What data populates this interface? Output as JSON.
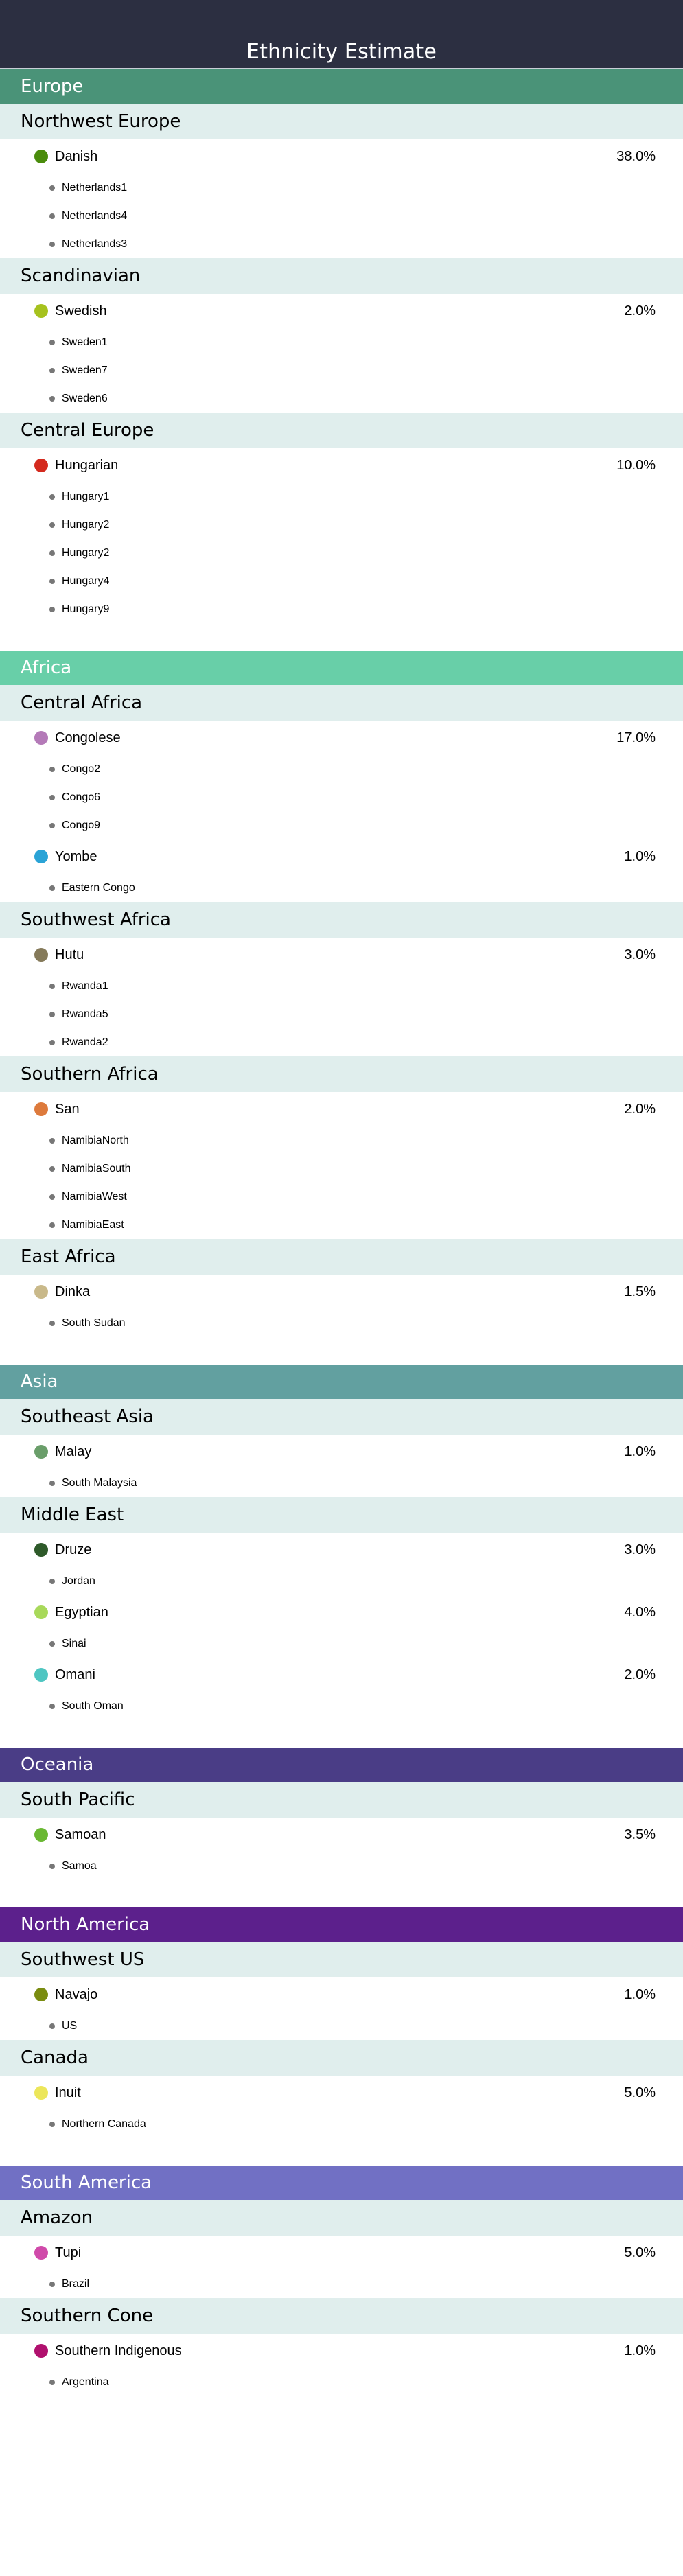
{
  "title": "Ethnicity Estimate",
  "regions": [
    {
      "name": "Europe",
      "color": "#4a9378",
      "groups": [
        {
          "name": "Northwest Europe",
          "ethnicities": [
            {
              "name": "Danish",
              "percent": "38.0%",
              "color": "#4a8c0c",
              "subregions": [
                "Netherlands1",
                "Netherlands4",
                "Netherlands3"
              ]
            }
          ]
        },
        {
          "name": "Scandinavian",
          "ethnicities": [
            {
              "name": "Swedish",
              "percent": "2.0%",
              "color": "#a6c21e",
              "subregions": [
                "Sweden1",
                "Sweden7",
                "Sweden6"
              ]
            }
          ]
        },
        {
          "name": "Central Europe",
          "ethnicities": [
            {
              "name": "Hungarian",
              "percent": "10.0%",
              "color": "#d42a1e",
              "subregions": [
                "Hungary1",
                "Hungary2",
                "Hungary2",
                "Hungary4",
                "Hungary9"
              ]
            }
          ]
        }
      ]
    },
    {
      "name": "Africa",
      "color": "#68cfa8",
      "groups": [
        {
          "name": "Central Africa",
          "ethnicities": [
            {
              "name": "Congolese",
              "percent": "17.0%",
              "color": "#b47ab8",
              "subregions": [
                "Congo2",
                "Congo6",
                "Congo9"
              ]
            },
            {
              "name": "Yombe",
              "percent": "1.0%",
              "color": "#2aa3d6",
              "subregions": [
                "Eastern Congo"
              ]
            }
          ]
        },
        {
          "name": "Southwest Africa",
          "ethnicities": [
            {
              "name": "Hutu",
              "percent": "3.0%",
              "color": "#857a5a",
              "subregions": [
                "Rwanda1",
                "Rwanda5",
                "Rwanda2"
              ]
            }
          ]
        },
        {
          "name": "Southern Africa",
          "ethnicities": [
            {
              "name": "San",
              "percent": "2.0%",
              "color": "#dd7a3c",
              "subregions": [
                "NamibiaNorth",
                "NamibiaSouth",
                "NamibiaWest",
                "NamibiaEast"
              ]
            }
          ]
        },
        {
          "name": "East Africa",
          "ethnicities": [
            {
              "name": "Dinka",
              "percent": "1.5%",
              "color": "#c9b98a",
              "subregions": [
                "South Sudan"
              ]
            }
          ]
        }
      ]
    },
    {
      "name": "Asia",
      "color": "#62a0a0",
      "groups": [
        {
          "name": "Southeast Asia",
          "ethnicities": [
            {
              "name": "Malay",
              "percent": "1.0%",
              "color": "#6a9e6a",
              "subregions": [
                "South Malaysia"
              ]
            }
          ]
        },
        {
          "name": "Middle East",
          "ethnicities": [
            {
              "name": "Druze",
              "percent": "3.0%",
              "color": "#2e5a2a",
              "subregions": [
                "Jordan"
              ]
            },
            {
              "name": "Egyptian",
              "percent": "4.0%",
              "color": "#a8d95a",
              "subregions": [
                "Sinai"
              ]
            },
            {
              "name": "Omani",
              "percent": "2.0%",
              "color": "#4fc6c2",
              "subregions": [
                "South Oman"
              ]
            }
          ]
        }
      ]
    },
    {
      "name": "Oceania",
      "color": "#4a3d86",
      "groups": [
        {
          "name": "South Pacific",
          "ethnicities": [
            {
              "name": "Samoan",
              "percent": "3.5%",
              "color": "#6ab833",
              "subregions": [
                "Samoa"
              ]
            }
          ]
        }
      ]
    },
    {
      "name": "North America",
      "color": "#5c208c",
      "groups": [
        {
          "name": "Southwest US",
          "ethnicities": [
            {
              "name": "Navajo",
              "percent": "1.0%",
              "color": "#7a8c10",
              "subregions": [
                "US"
              ]
            }
          ]
        },
        {
          "name": "Canada",
          "ethnicities": [
            {
              "name": "Inuit",
              "percent": "5.0%",
              "color": "#ece65a",
              "subregions": [
                "Northern Canada"
              ]
            }
          ]
        }
      ]
    },
    {
      "name": "South America",
      "color": "#7170c4",
      "groups": [
        {
          "name": "Amazon",
          "ethnicities": [
            {
              "name": "Tupi",
              "percent": "5.0%",
              "color": "#d04aaa",
              "subregions": [
                "Brazil"
              ]
            }
          ]
        },
        {
          "name": "Southern Cone",
          "ethnicities": [
            {
              "name": "Southern Indigenous",
              "percent": "1.0%",
              "color": "#b0106e",
              "subregions": [
                "Argentina"
              ]
            }
          ]
        }
      ]
    }
  ]
}
